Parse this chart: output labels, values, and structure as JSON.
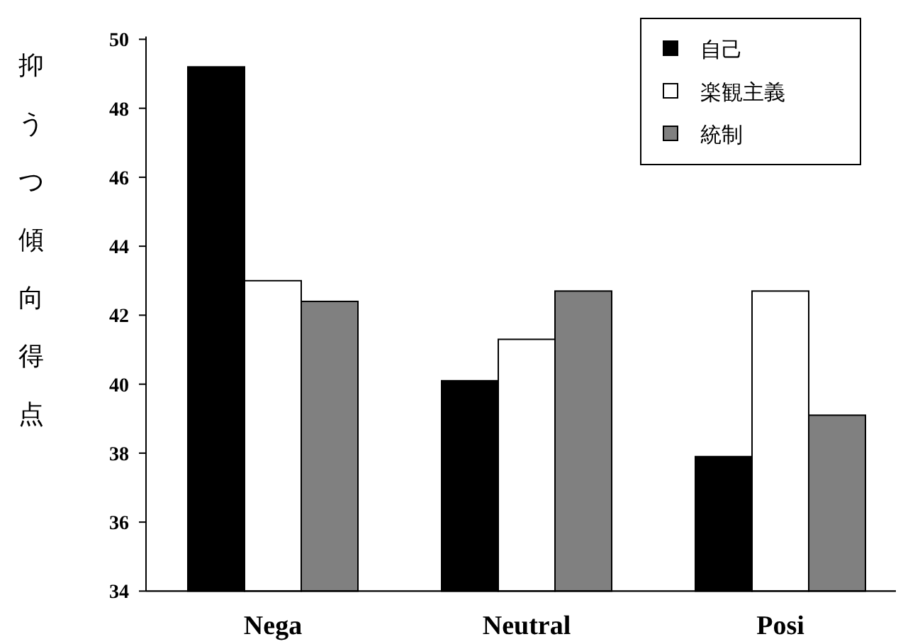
{
  "chart_data": {
    "type": "bar",
    "ylabel": "抑うつ傾向得点",
    "categories": [
      "Nega",
      "Neutral",
      "Posi"
    ],
    "series": [
      {
        "name": "自己",
        "color": "#000000",
        "values": [
          49.2,
          40.1,
          37.9
        ]
      },
      {
        "name": "楽観主義",
        "color": "#ffffff",
        "values": [
          43.0,
          41.3,
          42.7
        ]
      },
      {
        "name": "統制",
        "color": "#808080",
        "values": [
          42.4,
          42.7,
          39.1
        ]
      }
    ],
    "ylim": [
      34,
      50
    ],
    "yticks": [
      34,
      36,
      38,
      40,
      42,
      44,
      46,
      48,
      50
    ],
    "grid": false,
    "legend": "top right"
  }
}
